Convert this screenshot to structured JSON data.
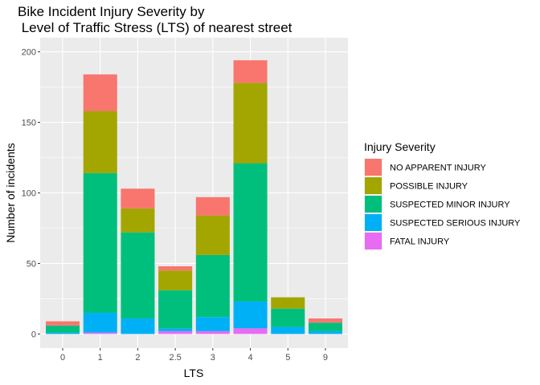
{
  "chart_data": {
    "type": "bar",
    "stacked": true,
    "title_lines": [
      "Bike Incident Injury Severity by",
      " Level of Traffic Stress (LTS) of nearest street"
    ],
    "xlabel": "LTS",
    "ylabel": "Number of incidents",
    "categories": [
      "0",
      "1",
      "2",
      "2.5",
      "3",
      "4",
      "5",
      "9"
    ],
    "ylim": [
      -10,
      210
    ],
    "yticks": [
      0,
      50,
      100,
      150,
      200
    ],
    "grid": true,
    "legend": {
      "title": "Injury Severity",
      "placement": "right",
      "order": [
        "NO APPARENT INJURY",
        "POSSIBLE INJURY",
        "SUSPECTED MINOR INJURY",
        "SUSPECTED SERIOUS INJURY",
        "FATAL INJURY"
      ]
    },
    "series": [
      {
        "name": "FATAL INJURY",
        "color": "#E76BF3",
        "values": [
          0,
          1,
          0,
          2,
          2,
          4,
          0,
          0
        ]
      },
      {
        "name": "SUSPECTED SERIOUS INJURY",
        "color": "#00B0F6",
        "values": [
          1,
          14,
          11,
          2,
          10,
          19,
          5,
          2
        ]
      },
      {
        "name": "SUSPECTED MINOR INJURY",
        "color": "#00BF7D",
        "values": [
          5,
          99,
          61,
          27,
          44,
          98,
          13,
          6
        ]
      },
      {
        "name": "POSSIBLE INJURY",
        "color": "#A3A500",
        "values": [
          0,
          44,
          17,
          14,
          28,
          57,
          8,
          0
        ]
      },
      {
        "name": "NO APPARENT INJURY",
        "color": "#F8766D",
        "values": [
          3,
          26,
          14,
          3,
          13,
          16,
          0,
          3
        ]
      }
    ],
    "panel_background": "#EBEBEB",
    "grid_color": "#FFFFFF"
  }
}
